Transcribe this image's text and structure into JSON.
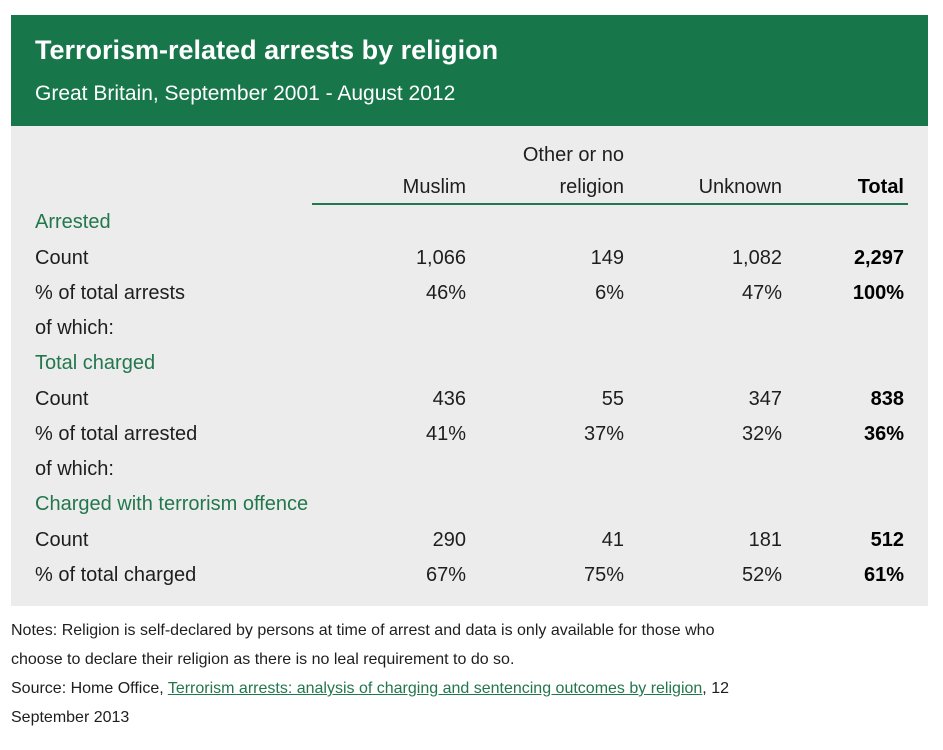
{
  "colors": {
    "header_bg": "#17774a",
    "panel_bg": "#ececec",
    "accent": "#22774c"
  },
  "header": {
    "title": "Terrorism-related arrests by religion",
    "subtitle": "Great Britain, September 2001 - August 2012"
  },
  "chart_data": {
    "type": "table",
    "title": "Terrorism-related arrests by religion",
    "subtitle": "Great Britain, September 2001 - August 2012",
    "columns": {
      "muslim": "Muslim",
      "other_line1": "Other or no",
      "other_line2": "religion",
      "unknown": "Unknown",
      "total": "Total"
    },
    "sections": {
      "arrested": {
        "heading": "Arrested",
        "count_label": "Count",
        "count": [
          "1,066",
          "149",
          "1,082",
          "2,297"
        ],
        "pct_label": "% of total arrests",
        "pct": [
          "46%",
          "6%",
          "47%",
          "100%"
        ],
        "sub_label": "of which:"
      },
      "charged": {
        "heading": "Total charged",
        "count_label": "Count",
        "count": [
          "436",
          "55",
          "347",
          "838"
        ],
        "pct_label": "% of total arrested",
        "pct": [
          "41%",
          "37%",
          "32%",
          "36%"
        ],
        "sub_label": "of which:"
      },
      "terrorism": {
        "heading": "Charged with terrorism offence",
        "count_label": "Count",
        "count": [
          "290",
          "41",
          "181",
          "512"
        ],
        "pct_label": "% of total charged",
        "pct": [
          "67%",
          "75%",
          "52%",
          "61%"
        ]
      }
    }
  },
  "notes": {
    "line1": "Notes:  Religion is self-declared by persons at time of arrest and data is only available for those who",
    "line2": "choose to declare their religion as there is no leal requirement to do so.",
    "source_prefix": "Source: Home Office, ",
    "source_link": "Terrorism arrests: analysis of charging and sentencing outcomes by religion",
    "source_suffix": ", 12",
    "line4": "September 2013"
  }
}
